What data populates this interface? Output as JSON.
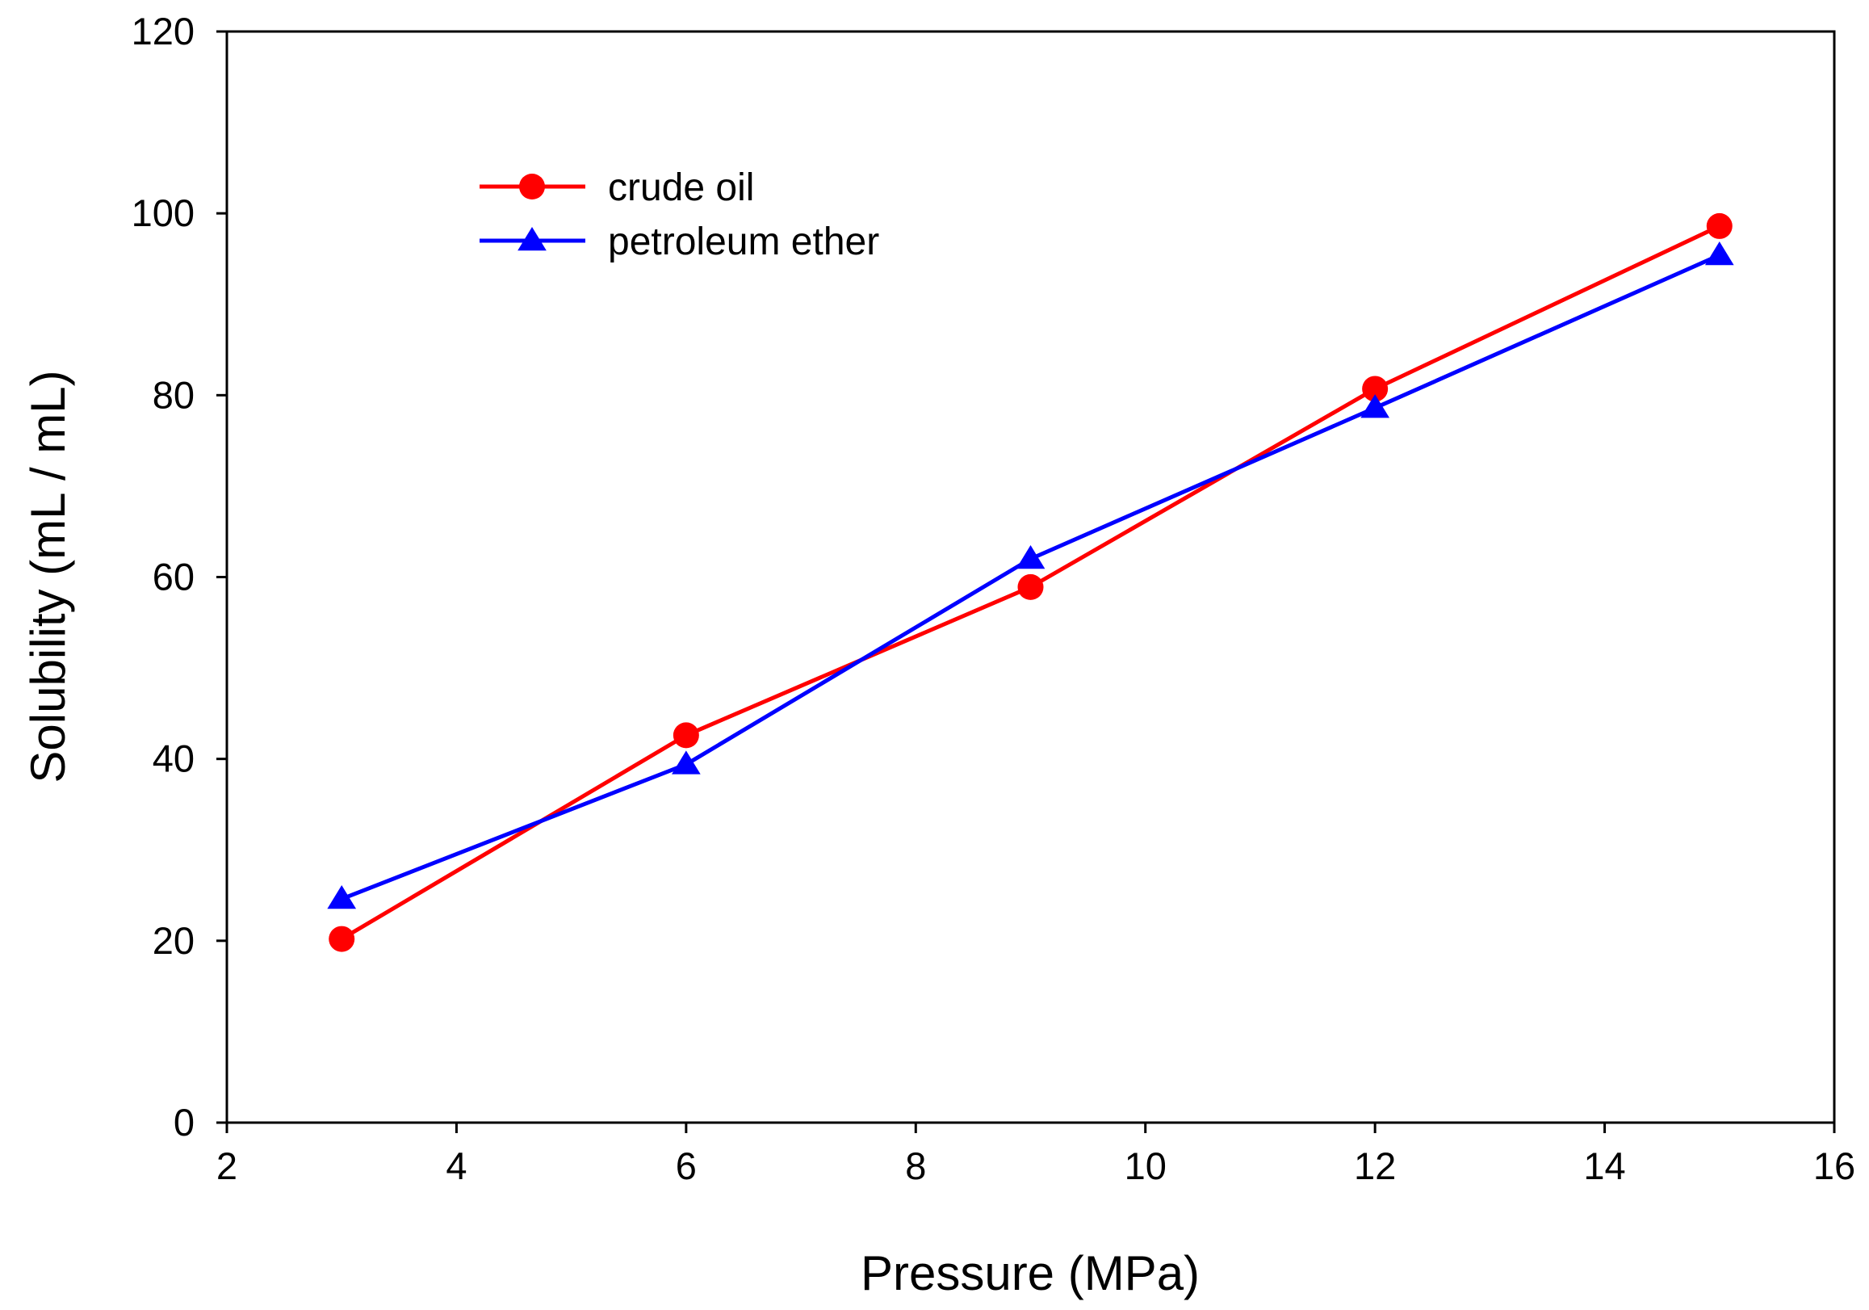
{
  "chart_data": {
    "type": "line",
    "title": "",
    "xlabel": "Pressure (MPa)",
    "ylabel": "Solubility (mL / mL)",
    "xlim": [
      2,
      16
    ],
    "ylim": [
      0,
      120
    ],
    "xticks": [
      2,
      4,
      6,
      8,
      10,
      12,
      14,
      16
    ],
    "yticks": [
      0,
      20,
      40,
      60,
      80,
      100,
      120
    ],
    "xtick_labels": [
      "2",
      "4",
      "6",
      "8",
      "10",
      "12",
      "14",
      "16"
    ],
    "ytick_labels": [
      "0",
      "20",
      "40",
      "60",
      "80",
      "100",
      "120"
    ],
    "grid": false,
    "legend_position": "top-left",
    "series": [
      {
        "name": "crude oil",
        "color": "#ff0000",
        "marker": "circle",
        "x": [
          3,
          6,
          9,
          12,
          15
        ],
        "values": [
          20.2,
          42.6,
          58.9,
          80.7,
          98.6
        ]
      },
      {
        "name": "petroleum ether",
        "color": "#0000ff",
        "marker": "triangle",
        "x": [
          3,
          6,
          9,
          12,
          15
        ],
        "values": [
          24.6,
          39.4,
          62.0,
          78.6,
          95.4
        ]
      }
    ]
  }
}
